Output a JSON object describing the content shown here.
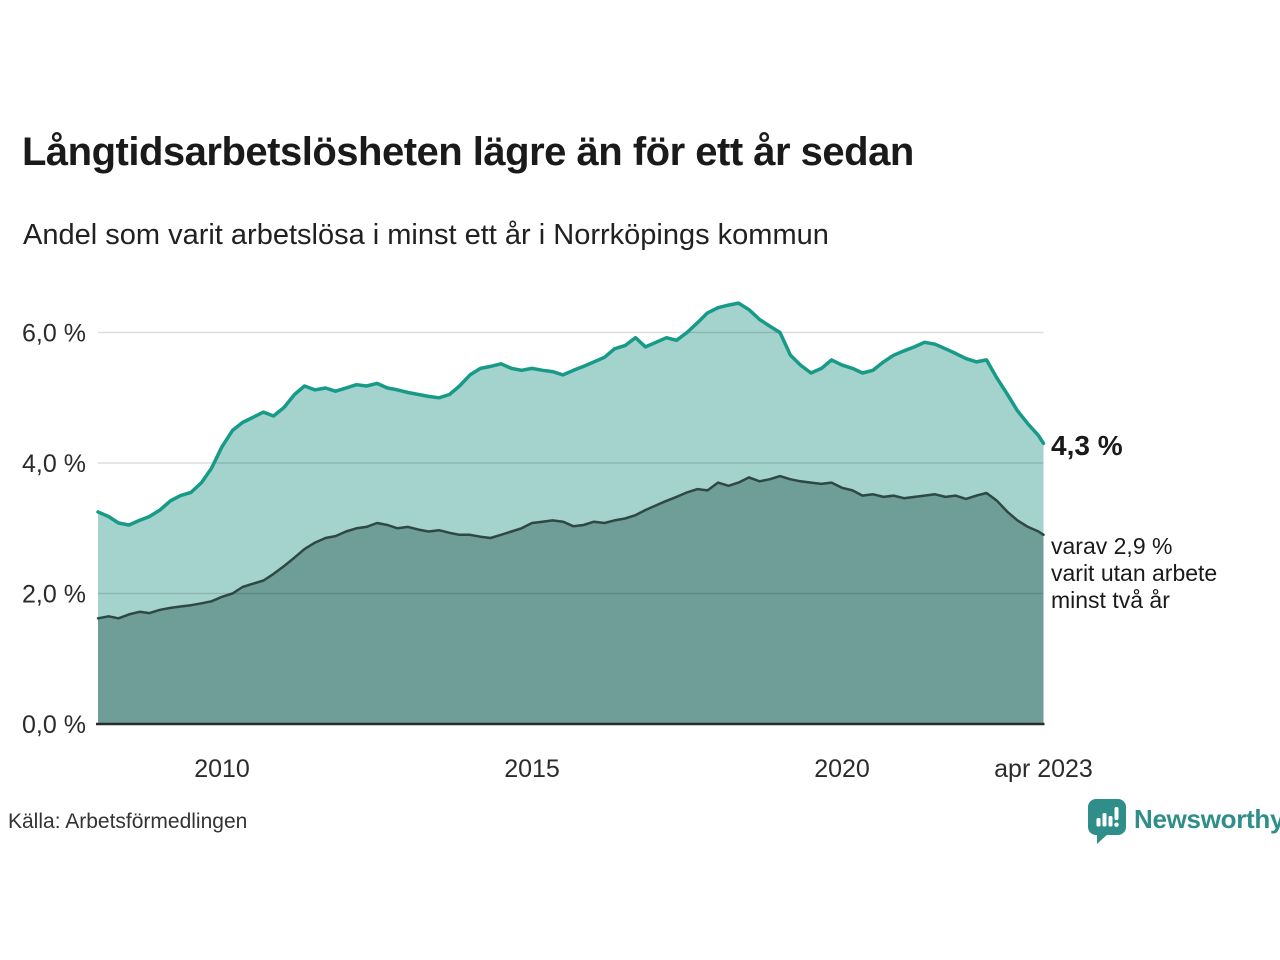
{
  "header": {
    "title": "Långtidsarbetslösheten lägre än för ett år sedan",
    "subtitle": "Andel som varit arbetslösa i minst ett år i Norrköpings kommun"
  },
  "chart_data": {
    "type": "area",
    "title": "Långtidsarbetslösheten lägre än för ett år sedan",
    "subtitle": "Andel som varit arbetslösa i minst ett år i Norrköpings kommun",
    "grid": true,
    "legend_position": "none",
    "xlim": [
      2008.0,
      2023.25
    ],
    "ylim": [
      0,
      6.9
    ],
    "x_ticks": [
      {
        "label": "2010",
        "x": 2010
      },
      {
        "label": "2015",
        "x": 2015
      },
      {
        "label": "2020",
        "x": 2020
      },
      {
        "label": "apr 2023",
        "x": 2023.25
      }
    ],
    "y_ticks": [
      {
        "label": "6,0 %",
        "v": 6
      },
      {
        "label": "4,0 %",
        "v": 4
      },
      {
        "label": "2,0 %",
        "v": 2
      },
      {
        "label": "0,0 %",
        "v": 0
      }
    ],
    "x": [
      2008,
      2008.17,
      2008.33,
      2008.5,
      2008.67,
      2008.83,
      2009,
      2009.17,
      2009.33,
      2009.5,
      2009.67,
      2009.83,
      2010,
      2010.17,
      2010.33,
      2010.5,
      2010.67,
      2010.83,
      2011,
      2011.17,
      2011.33,
      2011.5,
      2011.67,
      2011.83,
      2012,
      2012.17,
      2012.33,
      2012.5,
      2012.67,
      2012.83,
      2013,
      2013.17,
      2013.33,
      2013.5,
      2013.67,
      2013.83,
      2014,
      2014.17,
      2014.33,
      2014.5,
      2014.67,
      2014.83,
      2015,
      2015.17,
      2015.33,
      2015.5,
      2015.67,
      2015.83,
      2016,
      2016.17,
      2016.33,
      2016.5,
      2016.67,
      2016.83,
      2017,
      2017.17,
      2017.33,
      2017.5,
      2017.67,
      2017.83,
      2018,
      2018.17,
      2018.33,
      2018.5,
      2018.67,
      2018.83,
      2019,
      2019.17,
      2019.33,
      2019.5,
      2019.67,
      2019.83,
      2020,
      2020.17,
      2020.33,
      2020.5,
      2020.67,
      2020.83,
      2021,
      2021.17,
      2021.33,
      2021.5,
      2021.67,
      2021.83,
      2022,
      2022.17,
      2022.33,
      2022.5,
      2022.67,
      2022.83,
      2023,
      2023.17,
      2023.25
    ],
    "series": [
      {
        "name": "Andel arbetslösa minst ett år",
        "stroke": "#189a88",
        "fill": "#a3d3cc",
        "stroke_width": 3.5,
        "end_label": "4,3 %",
        "values": [
          3.25,
          3.18,
          3.08,
          3.05,
          3.12,
          3.18,
          3.28,
          3.42,
          3.5,
          3.55,
          3.7,
          3.92,
          4.25,
          4.5,
          4.62,
          4.7,
          4.78,
          4.72,
          4.85,
          5.05,
          5.18,
          5.12,
          5.15,
          5.1,
          5.15,
          5.2,
          5.18,
          5.22,
          5.15,
          5.12,
          5.08,
          5.05,
          5.02,
          5.0,
          5.05,
          5.18,
          5.35,
          5.45,
          5.48,
          5.52,
          5.45,
          5.42,
          5.45,
          5.42,
          5.4,
          5.35,
          5.42,
          5.48,
          5.55,
          5.62,
          5.75,
          5.8,
          5.92,
          5.78,
          5.85,
          5.92,
          5.88,
          6.0,
          6.15,
          6.3,
          6.38,
          6.42,
          6.45,
          6.35,
          6.2,
          6.1,
          6.0,
          5.65,
          5.5,
          5.38,
          5.45,
          5.58,
          5.5,
          5.45,
          5.38,
          5.42,
          5.55,
          5.65,
          5.72,
          5.78,
          5.85,
          5.82,
          5.75,
          5.68,
          5.6,
          5.55,
          5.58,
          5.3,
          5.05,
          4.8,
          4.6,
          4.42,
          4.3
        ]
      },
      {
        "name": "varav utan arbete minst två år",
        "stroke": "#2e4943",
        "fill": "#6f9d98",
        "stroke_width": 2.5,
        "end_label": "2,9 %",
        "values": [
          1.62,
          1.65,
          1.62,
          1.68,
          1.72,
          1.7,
          1.75,
          1.78,
          1.8,
          1.82,
          1.85,
          1.88,
          1.95,
          2.0,
          2.1,
          2.15,
          2.2,
          2.3,
          2.42,
          2.55,
          2.68,
          2.78,
          2.85,
          2.88,
          2.95,
          3.0,
          3.02,
          3.08,
          3.05,
          3.0,
          3.02,
          2.98,
          2.95,
          2.97,
          2.93,
          2.9,
          2.9,
          2.87,
          2.85,
          2.9,
          2.95,
          3.0,
          3.08,
          3.1,
          3.12,
          3.1,
          3.03,
          3.05,
          3.1,
          3.08,
          3.12,
          3.15,
          3.2,
          3.28,
          3.35,
          3.42,
          3.48,
          3.55,
          3.6,
          3.58,
          3.7,
          3.65,
          3.7,
          3.78,
          3.72,
          3.75,
          3.8,
          3.75,
          3.72,
          3.7,
          3.68,
          3.7,
          3.62,
          3.58,
          3.5,
          3.52,
          3.48,
          3.5,
          3.46,
          3.48,
          3.5,
          3.52,
          3.48,
          3.5,
          3.45,
          3.5,
          3.54,
          3.42,
          3.25,
          3.12,
          3.02,
          2.95,
          2.9
        ]
      }
    ],
    "annotations": {
      "primary": "4,3 %",
      "secondary": "varav 2,9 %\nvarit utan arbete\nminst två år"
    },
    "axis_color": "#2b2b2b",
    "gridline_color": "rgba(0,0,0,0.13)"
  },
  "footer": {
    "source": "Källa: Arbetsförmedlingen",
    "brand": "Newsworthy",
    "brand_color": "#2f8e89"
  }
}
